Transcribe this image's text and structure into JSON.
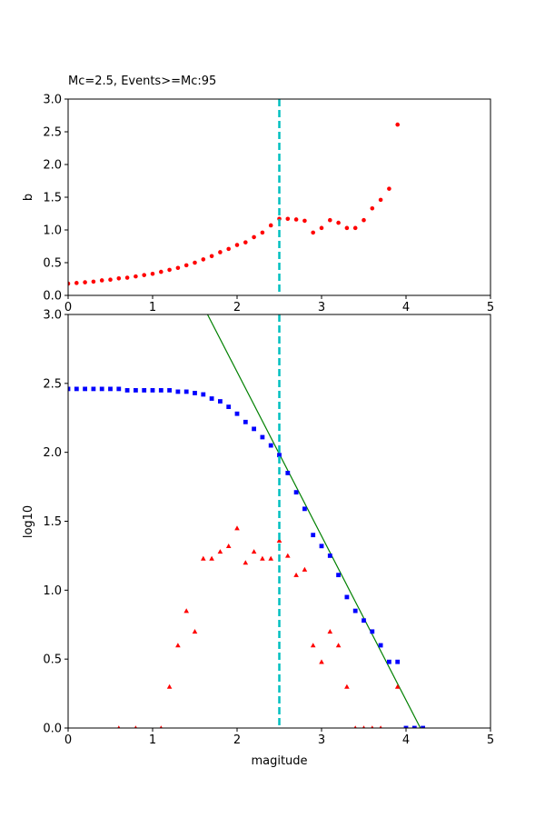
{
  "chart_data": [
    {
      "type": "scatter",
      "title": "Mc=2.5, Events>=Mc:95",
      "xlabel": "",
      "ylabel": "b",
      "xlim": [
        0,
        5
      ],
      "ylim": [
        0,
        3
      ],
      "xticks": [
        "0",
        "1",
        "2",
        "3",
        "4",
        "5"
      ],
      "yticks": [
        "0.0",
        "0.5",
        "1.0",
        "1.5",
        "2.0",
        "2.5",
        "3.0"
      ],
      "mc_line": {
        "x": 2.5,
        "color": "#00bfbf"
      },
      "series": [
        {
          "marker": "circle",
          "color": "#ff0000",
          "x": [
            0.0,
            0.1,
            0.2,
            0.3,
            0.4,
            0.5,
            0.6,
            0.7,
            0.8,
            0.9,
            1.0,
            1.1,
            1.2,
            1.3,
            1.4,
            1.5,
            1.6,
            1.7,
            1.8,
            1.9,
            2.0,
            2.1,
            2.2,
            2.3,
            2.4,
            2.5,
            2.6,
            2.7,
            2.8,
            2.9,
            3.0,
            3.1,
            3.2,
            3.3,
            3.4,
            3.5,
            3.6,
            3.7,
            3.8,
            3.9
          ],
          "y": [
            0.18,
            0.19,
            0.2,
            0.21,
            0.23,
            0.24,
            0.26,
            0.27,
            0.29,
            0.31,
            0.33,
            0.36,
            0.39,
            0.42,
            0.46,
            0.5,
            0.55,
            0.6,
            0.66,
            0.71,
            0.77,
            0.81,
            0.89,
            0.96,
            1.07,
            1.17,
            1.17,
            1.16,
            1.14,
            0.96,
            1.03,
            1.15,
            1.11,
            1.03,
            1.03,
            1.15,
            1.33,
            1.46,
            1.63,
            2.61
          ]
        }
      ]
    },
    {
      "type": "scatter",
      "title": "",
      "xlabel": "magitude",
      "ylabel": "log10",
      "xlim": [
        0,
        5
      ],
      "ylim": [
        0,
        3
      ],
      "xticks": [
        "0",
        "1",
        "2",
        "3",
        "4",
        "5"
      ],
      "yticks": [
        "0.0",
        "0.5",
        "1.0",
        "1.5",
        "2.0",
        "2.5",
        "3.0"
      ],
      "mc_line": {
        "x": 2.5,
        "color": "#00bfbf"
      },
      "fit_line": {
        "color": "#008000",
        "x": [
          1.65,
          4.17
        ],
        "y": [
          3.0,
          0.0
        ]
      },
      "series": [
        {
          "marker": "square",
          "color": "#0000ff",
          "x": [
            0.0,
            0.1,
            0.2,
            0.3,
            0.4,
            0.5,
            0.6,
            0.7,
            0.8,
            0.9,
            1.0,
            1.1,
            1.2,
            1.3,
            1.4,
            1.5,
            1.6,
            1.7,
            1.8,
            1.9,
            2.0,
            2.1,
            2.2,
            2.3,
            2.4,
            2.5,
            2.6,
            2.7,
            2.8,
            2.9,
            3.0,
            3.1,
            3.2,
            3.3,
            3.4,
            3.5,
            3.6,
            3.7,
            3.8,
            3.9,
            4.0,
            4.1,
            4.2
          ],
          "y": [
            2.46,
            2.46,
            2.46,
            2.46,
            2.46,
            2.46,
            2.46,
            2.45,
            2.45,
            2.45,
            2.45,
            2.45,
            2.45,
            2.44,
            2.44,
            2.43,
            2.42,
            2.39,
            2.37,
            2.33,
            2.28,
            2.22,
            2.17,
            2.11,
            2.05,
            1.98,
            1.85,
            1.71,
            1.59,
            1.4,
            1.32,
            1.25,
            1.11,
            0.95,
            0.85,
            0.78,
            0.7,
            0.6,
            0.48,
            0.48,
            0.0,
            0.0,
            0.0
          ]
        },
        {
          "marker": "triangle",
          "color": "#ff0000",
          "x": [
            0.6,
            0.8,
            1.1,
            1.2,
            1.3,
            1.4,
            1.5,
            1.6,
            1.7,
            1.8,
            1.9,
            2.0,
            2.1,
            2.2,
            2.3,
            2.4,
            2.5,
            2.6,
            2.7,
            2.8,
            2.9,
            3.0,
            3.1,
            3.2,
            3.3,
            3.4,
            3.5,
            3.6,
            3.7,
            3.9
          ],
          "y": [
            0.0,
            0.0,
            0.0,
            0.3,
            0.6,
            0.85,
            0.7,
            1.23,
            1.23,
            1.28,
            1.32,
            1.45,
            1.2,
            1.28,
            1.23,
            1.23,
            1.36,
            1.25,
            1.11,
            1.15,
            0.6,
            0.48,
            0.7,
            0.6,
            0.3,
            0.0,
            0.0,
            0.0,
            0.0,
            0.3
          ]
        }
      ]
    }
  ]
}
